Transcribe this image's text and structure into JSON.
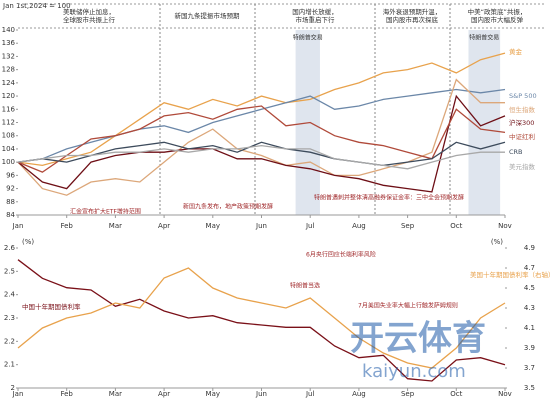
{
  "chart_data": [
    {
      "type": "line",
      "base_note": "Jan 1st,2024 = 100",
      "x": [
        0,
        0.5,
        1,
        1.5,
        2,
        2.5,
        3,
        3.5,
        4,
        4.5,
        5,
        5.5,
        6,
        6.5,
        7,
        7.5,
        8,
        8.5,
        9,
        9.5,
        10
      ],
      "xlim": [
        0,
        10
      ],
      "xticks": [
        {
          "value": 0,
          "label": "Jan"
        },
        {
          "value": 1,
          "label": "Feb"
        },
        {
          "value": 2,
          "label": "Mar"
        },
        {
          "value": 3,
          "label": "Apr"
        },
        {
          "value": 4,
          "label": "May"
        },
        {
          "value": 5,
          "label": "Jun"
        },
        {
          "value": 6,
          "label": "Jul"
        },
        {
          "value": 7,
          "label": "Aug"
        },
        {
          "value": 8,
          "label": "Sep"
        },
        {
          "value": 9,
          "label": "Oct"
        },
        {
          "value": 10,
          "label": "Nov"
        }
      ],
      "ylim": [
        84,
        140
      ],
      "yticks": [
        84,
        88,
        92,
        96,
        100,
        104,
        108,
        112,
        116,
        120,
        124,
        128,
        132,
        136,
        140
      ],
      "period_notes": [
        "美联储停止加息，全球股市共振上行",
        "新国九条提振市场预期",
        "国内增长放缓，市场重启下行",
        "海外衰退预期升温，国内股市再次探底",
        "中美“政策底”共振，国内股市大幅反弹"
      ],
      "shaded": [
        {
          "x0": 5.7,
          "x1": 6.2,
          "label": "特朗普交易"
        },
        {
          "x0": 9.25,
          "x1": 9.9,
          "label": "特朗普交易"
        }
      ],
      "annotations": [
        "汇金宣布扩大ETF增持范围",
        "新国九条发布，地产政策预期发酵",
        "特朗普遇刺并整体清高融券保证金率：三中全会预期发酵"
      ],
      "series": [
        {
          "name": "黄金",
          "color": "#e8a24c",
          "values": [
            100,
            99,
            101,
            103,
            108,
            113,
            118,
            116,
            119,
            117,
            120,
            118,
            119,
            122,
            124,
            127,
            128,
            130,
            127,
            131,
            133
          ]
        },
        {
          "name": "S&P 500",
          "color": "#6b87a8",
          "values": [
            100,
            101,
            104,
            106,
            108,
            110,
            111,
            109,
            112,
            114,
            116,
            118,
            120,
            116,
            117,
            119,
            120,
            121,
            122,
            121,
            122
          ]
        },
        {
          "name": "恒生指数",
          "color": "#dca77a",
          "values": [
            100,
            92,
            90,
            94,
            95,
            94,
            100,
            106,
            110,
            104,
            102,
            99,
            100,
            96,
            96,
            98,
            100,
            103,
            125,
            118,
            118
          ]
        },
        {
          "name": "沪深300",
          "color": "#6e0f16",
          "values": [
            100,
            94,
            92,
            100,
            102,
            103,
            103,
            104,
            104,
            101,
            101,
            99,
            98,
            96,
            95,
            93,
            92,
            91,
            120,
            111,
            114
          ]
        },
        {
          "name": "中证红利",
          "color": "#b04a3a",
          "values": [
            100,
            97,
            102,
            107,
            108,
            110,
            114,
            115,
            113,
            116,
            117,
            111,
            112,
            108,
            106,
            105,
            103,
            101,
            116,
            110,
            109
          ]
        },
        {
          "name": "CRB",
          "color": "#3d4b5c",
          "values": [
            100,
            101,
            100,
            102,
            104,
            105,
            106,
            104,
            105,
            103,
            106,
            104,
            103,
            101,
            100,
            99,
            100,
            101,
            106,
            104,
            106
          ]
        },
        {
          "name": "美元指数",
          "color": "#a8a8a8",
          "values": [
            100,
            101,
            102,
            102,
            103,
            103,
            104,
            103,
            104,
            104,
            105,
            104,
            104,
            101,
            100,
            99,
            98,
            100,
            102,
            103,
            103
          ]
        }
      ]
    },
    {
      "type": "line",
      "y_unit": "(%)",
      "y2_unit": "(%)",
      "x": [
        0,
        0.5,
        1,
        1.5,
        2,
        2.5,
        3,
        3.5,
        4,
        4.5,
        5,
        5.5,
        6,
        6.5,
        7,
        7.5,
        8,
        8.5,
        9,
        9.5,
        10
      ],
      "xlim": [
        0,
        10
      ],
      "xticks": [
        {
          "value": 0,
          "label": "Jan"
        },
        {
          "value": 1,
          "label": "Feb"
        },
        {
          "value": 2,
          "label": "Mar"
        },
        {
          "value": 3,
          "label": "Apr"
        },
        {
          "value": 4,
          "label": "May"
        },
        {
          "value": 5,
          "label": "Jun"
        },
        {
          "value": 6,
          "label": "Jul"
        },
        {
          "value": 7,
          "label": "Aug"
        },
        {
          "value": 8,
          "label": "Sep"
        },
        {
          "value": 9,
          "label": "Oct"
        },
        {
          "value": 10,
          "label": "Nov"
        }
      ],
      "ylim": [
        2,
        2.6
      ],
      "yticks": [
        2,
        2.1,
        2.2,
        2.3,
        2.4,
        2.5,
        2.6
      ],
      "y2lim": [
        3.5,
        4.9
      ],
      "y2ticks": [
        3.5,
        3.7,
        3.9,
        4.1,
        4.3,
        4.5,
        4.7,
        4.9
      ],
      "annotations": [
        "6月央行回应长端利率风险",
        "特朗普当选",
        "7月美国失业率大幅上行触发萨姆规则"
      ],
      "series": [
        {
          "name": "中国十年期国债利率",
          "color": "#7a1018",
          "values": [
            2.55,
            2.47,
            2.43,
            2.42,
            2.35,
            2.38,
            2.33,
            2.3,
            2.31,
            2.28,
            2.27,
            2.26,
            2.26,
            2.18,
            2.13,
            2.14,
            2.04,
            2.03,
            2.12,
            2.13,
            2.1
          ]
        },
        {
          "name": "美国十年期国债利率（右轴）",
          "color": "#e8a24c",
          "axis": "y2",
          "values": [
            3.9,
            4.1,
            4.2,
            4.25,
            4.35,
            4.3,
            4.6,
            4.7,
            4.5,
            4.4,
            4.35,
            4.3,
            4.4,
            4.2,
            4.0,
            3.85,
            3.75,
            3.7,
            3.9,
            4.2,
            4.35
          ]
        }
      ]
    }
  ],
  "watermark": {
    "brand": "开云体育",
    "site": "kaiyun.com"
  }
}
